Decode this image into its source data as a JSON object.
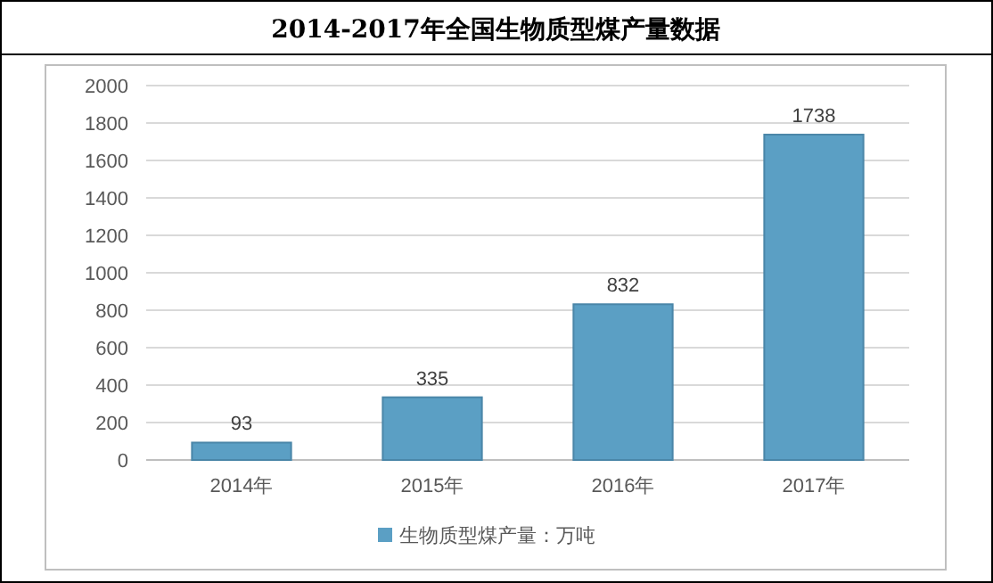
{
  "chart_data": {
    "type": "bar",
    "title": "2014-2017年全国生物质型煤产量数据",
    "categories": [
      "2014年",
      "2015年",
      "2016年",
      "2017年"
    ],
    "series": [
      {
        "name": "生物质型煤产量：万吨",
        "color": "#5b9fc4",
        "values": [
          93,
          335,
          832,
          1738
        ]
      }
    ],
    "ylim": [
      0,
      2000
    ],
    "yticks": [
      0,
      200,
      400,
      600,
      800,
      1000,
      1200,
      1400,
      1600,
      1800,
      2000
    ],
    "grid": "y",
    "legend": "bottom",
    "data_labels": true
  }
}
